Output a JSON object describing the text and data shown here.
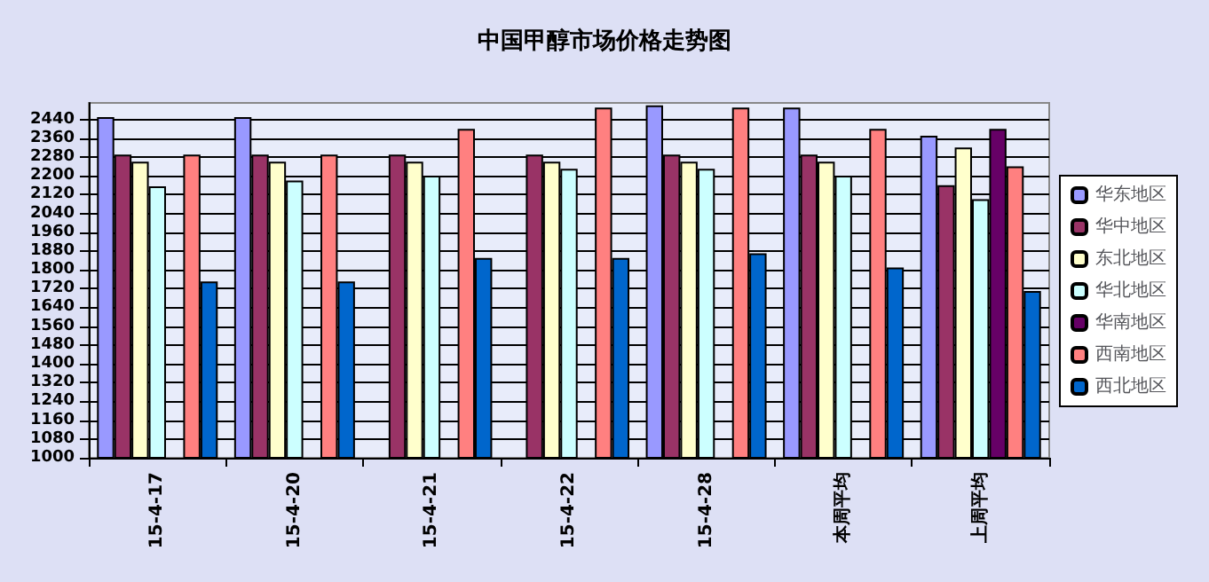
{
  "chart_data": {
    "type": "bar",
    "title": "中国甲醇市场价格走势图",
    "categories": [
      "15-4-17",
      "15-4-20",
      "15-4-21",
      "15-4-22",
      "15-4-28",
      "本周平均",
      "上周平均"
    ],
    "series": [
      {
        "name": "华东地区",
        "color": "#9999ff",
        "values": [
          2450,
          2450,
          null,
          null,
          2500,
          2490,
          2370
        ]
      },
      {
        "name": "华中地区",
        "color": "#993366",
        "values": [
          2290,
          2290,
          2290,
          2290,
          2290,
          2290,
          2160
        ]
      },
      {
        "name": "东北地区",
        "color": "#ffffcc",
        "values": [
          2260,
          2260,
          2260,
          2260,
          2260,
          2260,
          2320
        ]
      },
      {
        "name": "华北地区",
        "color": "#ccffff",
        "values": [
          2155,
          2180,
          2200,
          2230,
          2230,
          2200,
          2100
        ]
      },
      {
        "name": "华南地区",
        "color": "#660066",
        "values": [
          null,
          null,
          null,
          null,
          null,
          null,
          2400
        ]
      },
      {
        "name": "西南地区",
        "color": "#ff8080",
        "values": [
          2290,
          2290,
          2400,
          2490,
          2490,
          2400,
          2240
        ]
      },
      {
        "name": "西北地区",
        "color": "#0066cc",
        "values": [
          1750,
          1750,
          1850,
          1850,
          1870,
          1810,
          1710
        ]
      }
    ],
    "ylim": [
      1000,
      2510
    ],
    "yticks": [
      1000,
      1080,
      1160,
      1240,
      1320,
      1400,
      1480,
      1560,
      1640,
      1720,
      1800,
      1880,
      1960,
      2040,
      2120,
      2200,
      2280,
      2360,
      2440
    ],
    "grid": "y",
    "legend": "right"
  }
}
